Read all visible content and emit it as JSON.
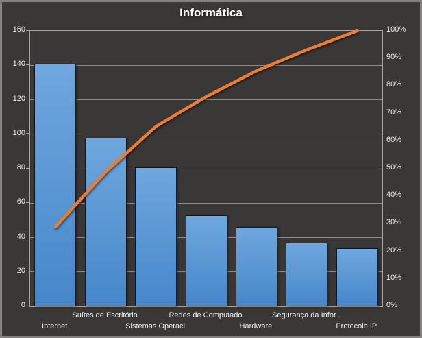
{
  "title": "Informática",
  "chart_data": {
    "type": "bar",
    "title": "Informática",
    "subtitle": "",
    "legend": false,
    "grid": true,
    "categories": [
      "Internet",
      "Suítes de Escritório",
      "Sistemas Operaci",
      "Redes de Computado",
      "Hardware",
      "Segurança da Infor .",
      "Protocolo IP"
    ],
    "series": [
      {
        "name": "frequency-bars",
        "type": "bar",
        "axis": "left",
        "values": [
          141,
          98,
          81,
          53,
          46,
          37,
          34
        ]
      },
      {
        "name": "cumulative-percent-line",
        "type": "line",
        "axis": "right",
        "cumulative_pct": [
          28.8,
          48.8,
          65.3,
          76.1,
          85.5,
          93.1,
          100
        ]
      }
    ],
    "left_axis": {
      "min": 0,
      "max": 160,
      "ticks": [
        0,
        20,
        40,
        60,
        80,
        100,
        120,
        140,
        160
      ]
    },
    "right_axis": {
      "ticks_pct": [
        0,
        10,
        20,
        30,
        40,
        50,
        60,
        70,
        80,
        90,
        100
      ],
      "labels": [
        "0%",
        "10%",
        "20%",
        "30%",
        "40%",
        "50%",
        "60%",
        "70%",
        "80%",
        "90%",
        "100%"
      ]
    },
    "colors": {
      "background": "#3A3737",
      "plot_border": "#A8A4A4",
      "gridline": "#8F8B8B",
      "bar_fill_top": "#6FA7DE",
      "bar_fill_bottom": "#4687CA",
      "bar_outline": "#151515",
      "line": "#ED7D31",
      "text": "#F0EEEE"
    }
  }
}
